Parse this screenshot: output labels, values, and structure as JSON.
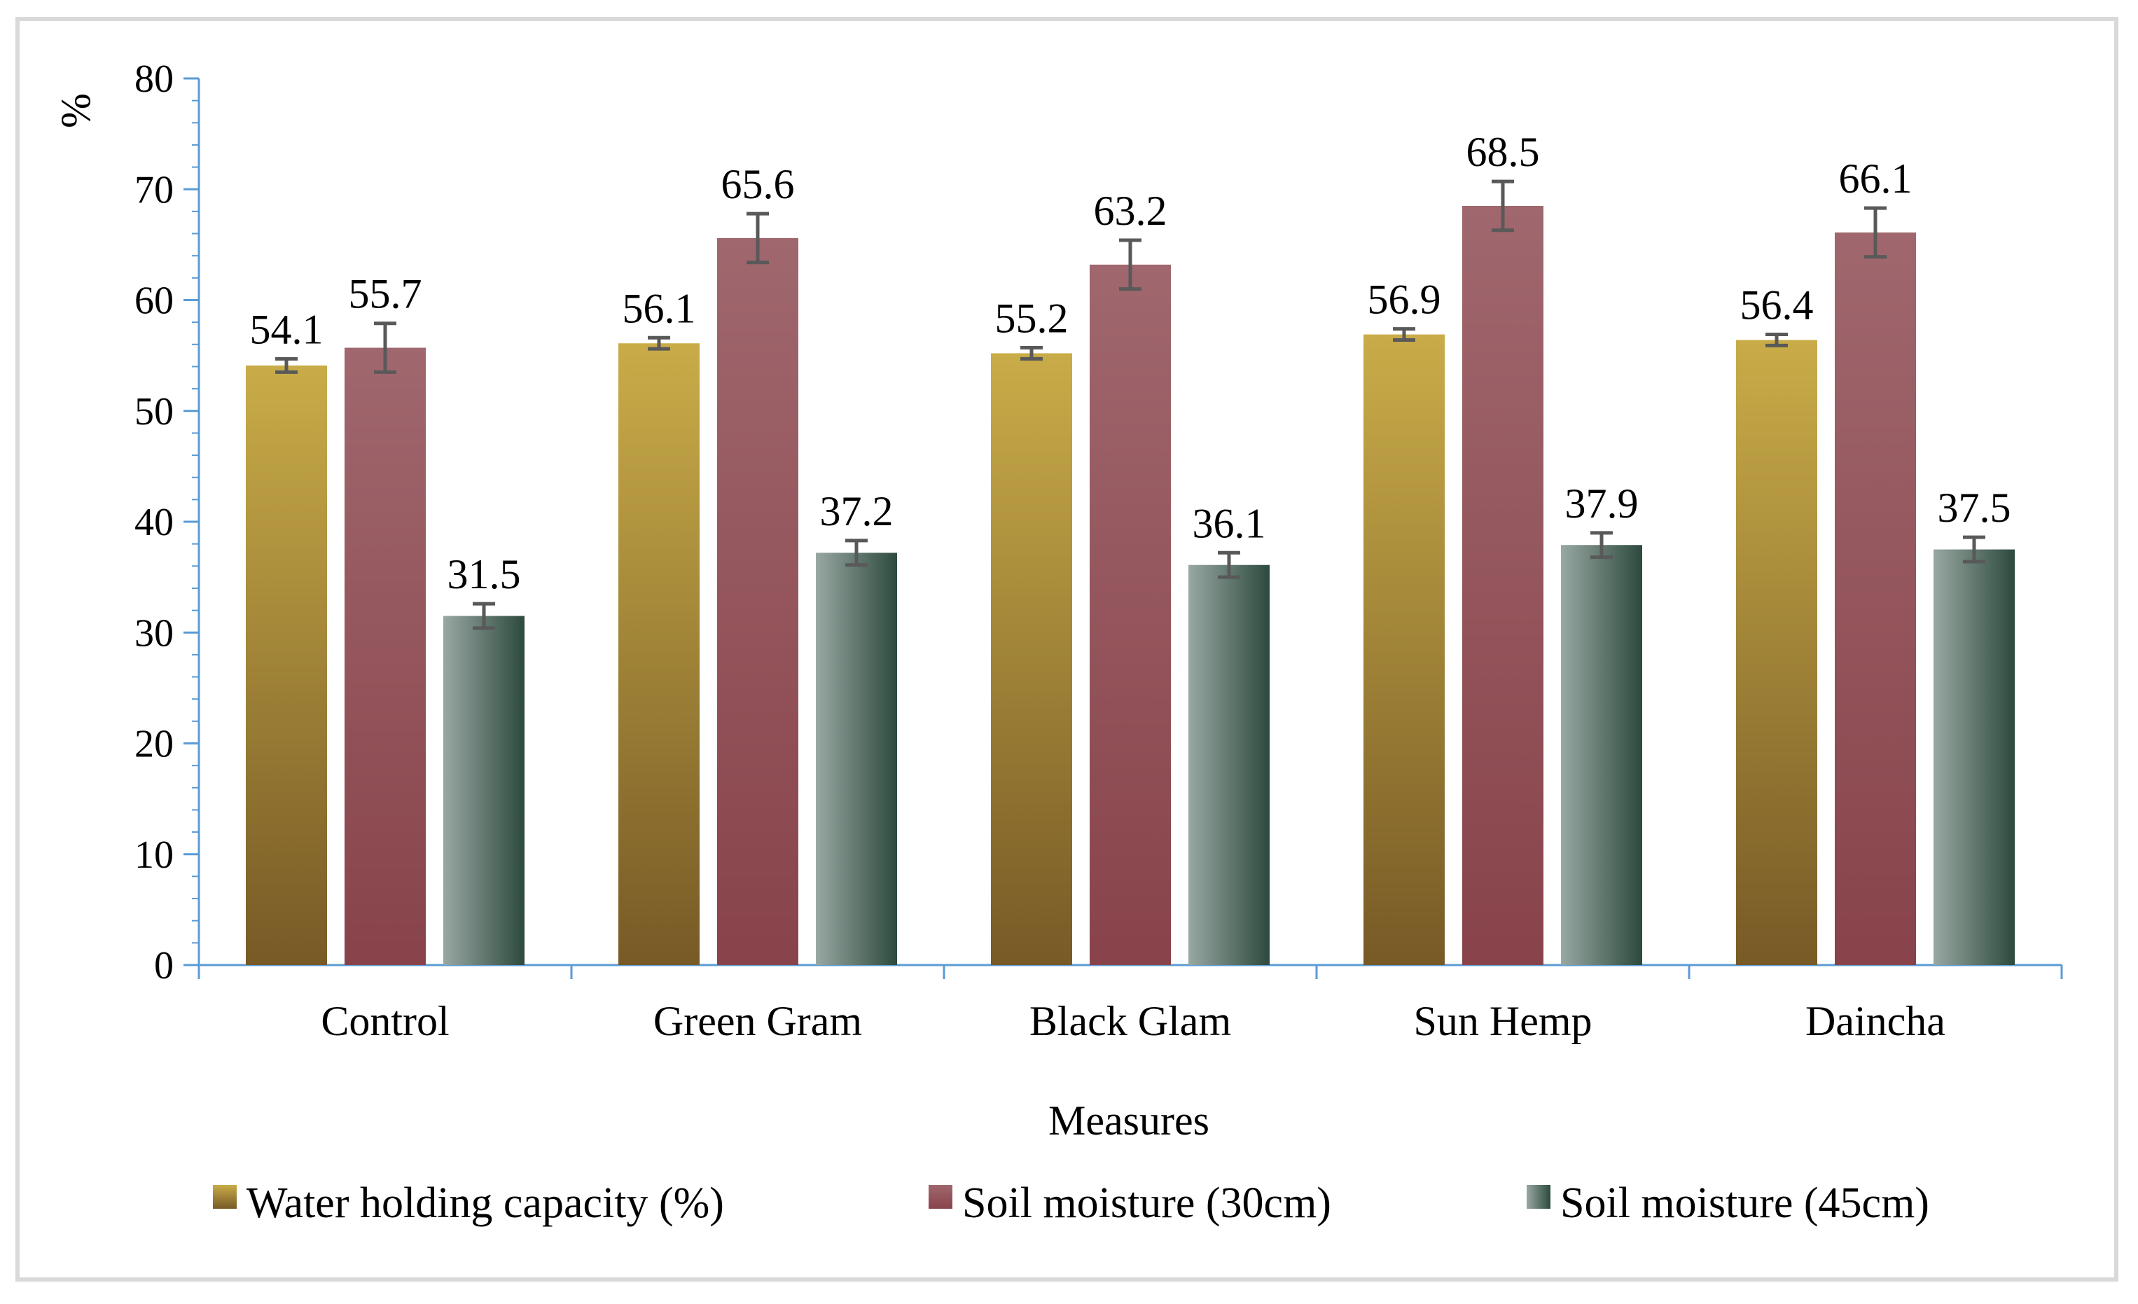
{
  "chart_data": {
    "type": "bar",
    "title": "",
    "xlabel": "Measures",
    "ylabel": "%",
    "ylim": [
      0,
      80
    ],
    "yticks": [
      0,
      10,
      20,
      30,
      40,
      50,
      60,
      70,
      80
    ],
    "grid": false,
    "legend_position": "bottom",
    "categories": [
      "Control",
      "Green Gram",
      "Black Glam",
      "Sun Hemp",
      "Daincha"
    ],
    "series": [
      {
        "name": "Water holding capacity (%)",
        "values": [
          54.1,
          56.1,
          55.2,
          56.9,
          56.4
        ],
        "labels": [
          "54.1",
          "56.1",
          "55.2",
          "56.9",
          "56.4"
        ],
        "errors": [
          0.6,
          0.5,
          0.5,
          0.5,
          0.5
        ],
        "color_top": "#c9ac48",
        "color_bottom": "#775a26"
      },
      {
        "name": "Soil moisture (30cm)",
        "values": [
          55.7,
          65.6,
          63.2,
          68.5,
          66.1
        ],
        "labels": [
          "55.7",
          "65.6",
          "63.2",
          "68.5",
          "66.1"
        ],
        "errors": [
          2.2,
          2.2,
          2.2,
          2.2,
          2.2
        ],
        "color_top": "#a0676e",
        "color_bottom": "#88434a"
      },
      {
        "name": "Soil moisture (45cm)",
        "values": [
          31.5,
          37.2,
          36.1,
          37.9,
          37.5
        ],
        "labels": [
          "31.5",
          "37.2",
          "36.1",
          "37.9",
          "37.5"
        ],
        "errors": [
          1.1,
          1.1,
          1.1,
          1.1,
          1.1
        ],
        "color_left": "#98a8a2",
        "color_right": "#2d4a3e"
      }
    ]
  },
  "colors": {
    "axis": "#5b9bd5",
    "error_bar": "#595959",
    "frame": "#d9d9d9"
  }
}
